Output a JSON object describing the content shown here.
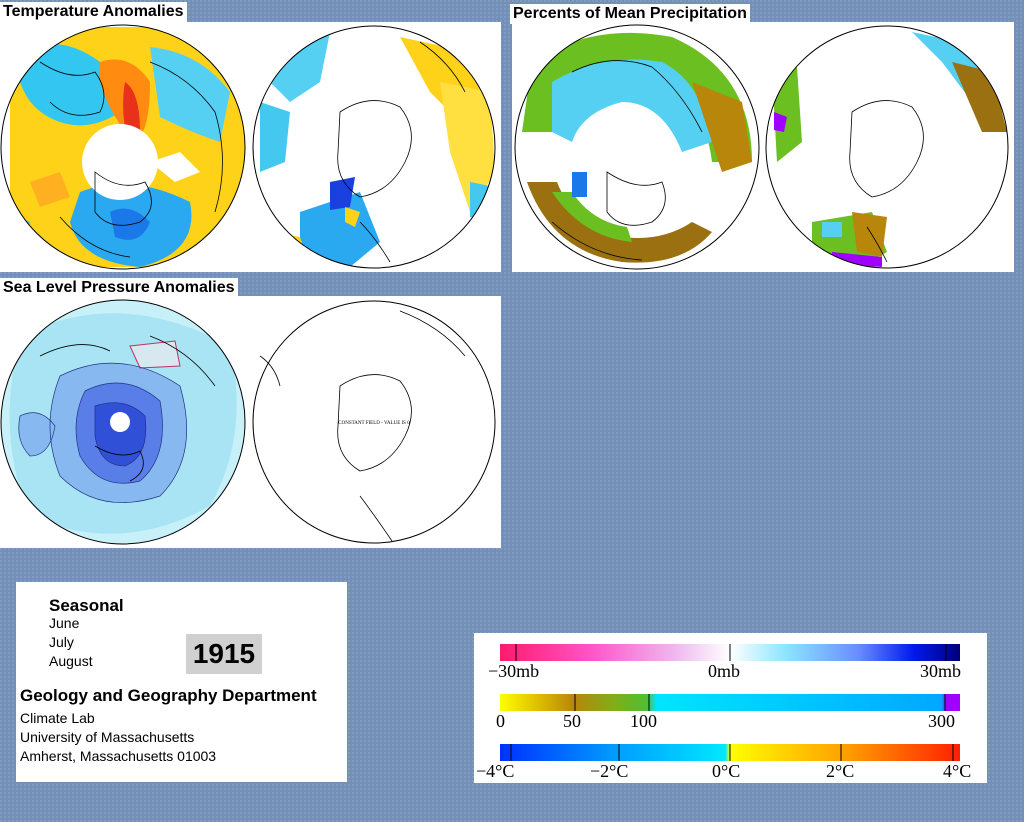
{
  "panels": {
    "temperature_title": "Temperature Anomalies",
    "precipitation_title": "Percents of Mean Precipitation",
    "slp_title": "Sea Level Pressure Anomalies",
    "constant_field_note": "CONSTANT FIELD - VALUE IS 0"
  },
  "info": {
    "heading": "Seasonal",
    "months": [
      "June",
      "July",
      "August"
    ],
    "year": "1915",
    "department": "Geology and Geography Department",
    "lab": "Climate Lab",
    "university": "University of Massachusetts",
    "address": "Amherst, Massachusetts 01003"
  },
  "legends": {
    "pressure": {
      "labels": [
        "−30mb",
        "0mb",
        "30mb"
      ],
      "colors": [
        "#ff1a6e",
        "#ff66cc",
        "#eeb0ee",
        "#ffffff",
        "#a0f0ff",
        "#7fb0ff",
        "#0020ff",
        "#000090"
      ]
    },
    "precipitation": {
      "labels": [
        "0",
        "50",
        "100",
        "300"
      ],
      "colors": [
        "#ffff00",
        "#b8860b",
        "#6bbf20",
        "#00e5ff",
        "#00b0ff",
        "#a000ff"
      ]
    },
    "temperature": {
      "labels": [
        "−4°C",
        "−2°C",
        "0°C",
        "2°C",
        "4°C"
      ],
      "colors": [
        "#0040ff",
        "#00a0ff",
        "#00e5ff",
        "#ffff00",
        "#ffa000",
        "#ff2000"
      ]
    }
  }
}
